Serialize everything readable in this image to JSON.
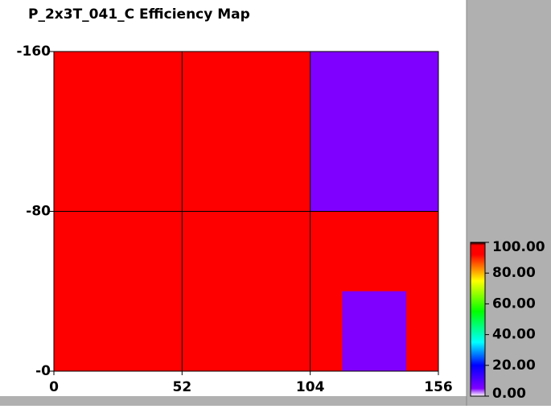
{
  "chart_data": {
    "type": "heatmap",
    "title": "P_2x3T_041_C Efficiency Map",
    "xlim": [
      0,
      156
    ],
    "xticks": [
      0,
      52,
      104,
      156
    ],
    "ylim": [
      0,
      -160
    ],
    "yticks": [
      {
        "value": 0,
        "label": "-0"
      },
      -80,
      -160
    ],
    "grid": true,
    "x": [
      0,
      13,
      26,
      39,
      52,
      65,
      78,
      91,
      104,
      117,
      130,
      143,
      156
    ],
    "y": [
      -160,
      -150,
      -140,
      -130,
      -120,
      -110,
      -100,
      -90,
      -80,
      -70,
      -60,
      -50,
      -40,
      -30,
      -20,
      -10,
      0
    ],
    "z": [
      [
        95,
        95,
        95,
        95,
        95,
        95,
        95,
        95,
        5,
        5,
        5,
        5
      ],
      [
        95,
        95,
        95,
        95,
        95,
        95,
        95,
        95,
        5,
        5,
        5,
        5
      ],
      [
        95,
        95,
        95,
        95,
        95,
        95,
        95,
        95,
        5,
        5,
        5,
        5
      ],
      [
        95,
        95,
        95,
        95,
        95,
        95,
        95,
        95,
        5,
        5,
        5,
        5
      ],
      [
        95,
        95,
        95,
        95,
        95,
        95,
        95,
        95,
        5,
        5,
        5,
        5
      ],
      [
        95,
        95,
        95,
        95,
        95,
        95,
        95,
        95,
        5,
        5,
        5,
        5
      ],
      [
        95,
        95,
        95,
        95,
        95,
        95,
        95,
        95,
        5,
        5,
        5,
        5
      ],
      [
        95,
        95,
        95,
        95,
        95,
        95,
        95,
        95,
        5,
        5,
        5,
        5
      ],
      [
        95,
        95,
        95,
        95,
        95,
        95,
        95,
        95,
        95,
        95,
        95,
        95
      ],
      [
        95,
        95,
        95,
        95,
        95,
        95,
        95,
        95,
        95,
        95,
        95,
        95
      ],
      [
        95,
        95,
        95,
        95,
        95,
        95,
        95,
        95,
        95,
        95,
        95,
        95
      ],
      [
        95,
        95,
        95,
        95,
        95,
        95,
        95,
        95,
        95,
        95,
        95,
        95
      ],
      [
        95,
        95,
        95,
        95,
        95,
        95,
        95,
        95,
        95,
        5,
        5,
        95
      ],
      [
        95,
        95,
        95,
        95,
        95,
        95,
        95,
        95,
        95,
        5,
        5,
        95
      ],
      [
        95,
        95,
        95,
        95,
        95,
        95,
        95,
        95,
        95,
        5,
        5,
        95
      ],
      [
        95,
        95,
        95,
        95,
        95,
        95,
        95,
        95,
        95,
        5,
        5,
        95
      ]
    ],
    "colorscale": [
      [
        0,
        "#ffffff"
      ],
      [
        5,
        "#8000ff"
      ],
      [
        20,
        "#0000ff"
      ],
      [
        35,
        "#00ffff"
      ],
      [
        55,
        "#00ff00"
      ],
      [
        75,
        "#ffff00"
      ],
      [
        92,
        "#ff0000"
      ],
      [
        98,
        "#ff0000"
      ],
      [
        100,
        "#000000"
      ]
    ],
    "zlim": [
      0,
      100
    ],
    "zticks": [
      {
        "value": 0,
        "label": "0.00"
      },
      {
        "value": 20,
        "label": "20.00"
      },
      {
        "value": 40,
        "label": "40.00"
      },
      {
        "value": 60,
        "label": "60.00"
      },
      {
        "value": 80,
        "label": "80.00"
      },
      {
        "value": 100,
        "label": "100.00"
      }
    ]
  }
}
